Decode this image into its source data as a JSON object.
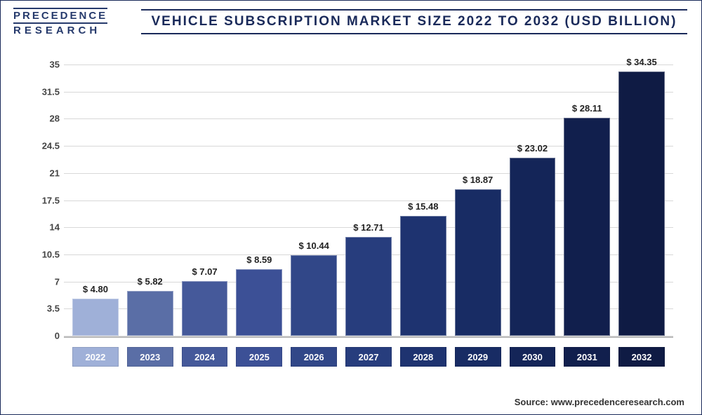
{
  "logo": {
    "line1": "PRECEDENCE",
    "line2": "RESEARCH"
  },
  "title": "VEHICLE SUBSCRIPTION MARKET SIZE 2022 TO 2032 (USD BILLION)",
  "source": "Source: www.precedenceresearch.com",
  "chart": {
    "type": "bar",
    "ylim": [
      0,
      36
    ],
    "yticks": [
      0,
      3.5,
      7,
      10.5,
      14,
      17.5,
      21,
      24.5,
      28,
      31.5,
      35
    ],
    "background_color": "#ffffff",
    "grid_color": "#d8d8d8",
    "axis_color": "#888888",
    "label_font_size": 13,
    "value_prefix": "$ ",
    "categories": [
      "2022",
      "2023",
      "2024",
      "2025",
      "2026",
      "2027",
      "2028",
      "2029",
      "2030",
      "2031",
      "2032"
    ],
    "values": [
      4.8,
      5.82,
      7.07,
      8.59,
      10.44,
      12.71,
      15.48,
      18.87,
      23.02,
      28.11,
      34.35
    ],
    "value_labels": [
      "$ 4.80",
      "$ 5.82",
      "$ 7.07",
      "$ 8.59",
      "$ 10.44",
      "$ 12.71",
      "$ 15.48",
      "$ 18.87",
      "$ 23.02",
      "$ 28.11",
      "$ 34.35"
    ],
    "bar_colors": [
      "#9fb0d8",
      "#5a6ea6",
      "#45599a",
      "#3c5096",
      "#314788",
      "#273d7d",
      "#1e3370",
      "#182c64",
      "#142558",
      "#111f4d",
      "#0f1b44"
    ],
    "xbox_colors": [
      "#9fb0d8",
      "#5a6ea6",
      "#45599a",
      "#3c5096",
      "#314788",
      "#273d7d",
      "#1e3370",
      "#182c64",
      "#142558",
      "#111f4d",
      "#0f1b44"
    ]
  }
}
